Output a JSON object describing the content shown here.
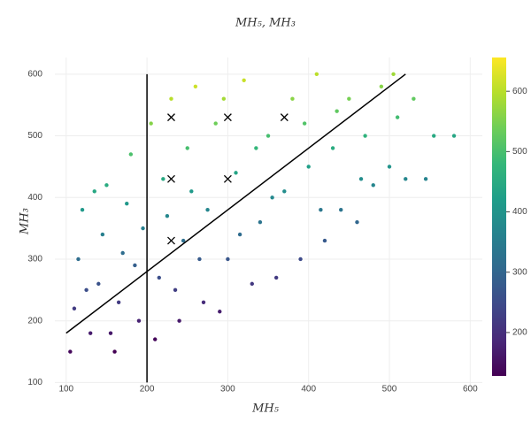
{
  "chart_data": {
    "type": "scatter",
    "title": "MH₅, MH₃",
    "x_label": "MH₅",
    "y_label": "MH₃",
    "xlim": [
      86,
      615
    ],
    "ylim": [
      92,
      627
    ],
    "xticks": [
      100,
      200,
      300,
      400,
      500,
      600
    ],
    "yticks": [
      100,
      200,
      300,
      400,
      500,
      600
    ],
    "grid": true,
    "x": [
      105,
      110,
      115,
      120,
      130,
      140,
      145,
      150,
      160,
      165,
      170,
      175,
      180,
      190,
      195,
      205,
      210,
      215,
      220,
      230,
      240,
      245,
      250,
      260,
      270,
      275,
      285,
      290,
      300,
      310,
      320,
      330,
      340,
      350,
      360,
      370,
      380,
      390,
      400,
      410,
      420,
      430,
      440,
      450,
      460,
      470,
      480,
      490,
      500,
      510,
      520,
      530,
      545,
      555,
      580,
      125,
      135,
      155,
      185,
      225,
      235,
      255,
      265,
      295,
      315,
      335,
      355,
      395,
      415,
      435,
      465,
      505
    ],
    "y": [
      150,
      220,
      300,
      380,
      180,
      260,
      340,
      420,
      150,
      230,
      310,
      390,
      470,
      200,
      350,
      520,
      170,
      270,
      430,
      560,
      200,
      330,
      480,
      580,
      230,
      380,
      520,
      215,
      300,
      440,
      590,
      260,
      360,
      500,
      270,
      410,
      560,
      300,
      450,
      600,
      330,
      480,
      380,
      560,
      360,
      500,
      420,
      580,
      450,
      530,
      430,
      560,
      430,
      500,
      500,
      250,
      410,
      180,
      290,
      370,
      250,
      410,
      300,
      560,
      340,
      480,
      400,
      520,
      380,
      540,
      430,
      600
    ],
    "color_values": [
      139,
      222,
      316,
      411,
      169,
      262,
      357,
      452,
      125,
      220,
      315,
      409,
      504,
      178,
      356,
      558,
      137,
      255,
      446,
      600,
      165,
      320,
      499,
      616,
      194,
      372,
      538,
      171,
      270,
      436,
      613,
      215,
      332,
      498,
      219,
      385,
      562,
      248,
      425,
      603,
      276,
      454,
      331,
      545,
      302,
      468,
      369,
      559,
      400,
      494,
      371,
      525,
      365,
      446,
      440,
      254,
      443,
      162,
      287,
      373,
      226,
      413,
      279,
      583,
      314,
      477,
      376,
      510,
      337,
      524,
      385,
      579
    ],
    "colorscale": [
      "#440154",
      "#482878",
      "#3e4989",
      "#31688e",
      "#26828e",
      "#1f9e89",
      "#35b779",
      "#6ece58",
      "#b5de2b",
      "#fde725"
    ],
    "color_range": [
      128,
      656
    ],
    "colorbar_ticks": [
      200,
      300,
      400,
      500,
      600
    ],
    "lines": [
      {
        "x": [
          200,
          200
        ],
        "y": [
          100,
          600
        ]
      },
      {
        "x": [
          100,
          520
        ],
        "y": [
          180,
          600
        ]
      }
    ],
    "markers": {
      "x": [
        230,
        300,
        370,
        230,
        300,
        230
      ],
      "y": [
        530,
        530,
        530,
        430,
        430,
        330
      ]
    }
  }
}
